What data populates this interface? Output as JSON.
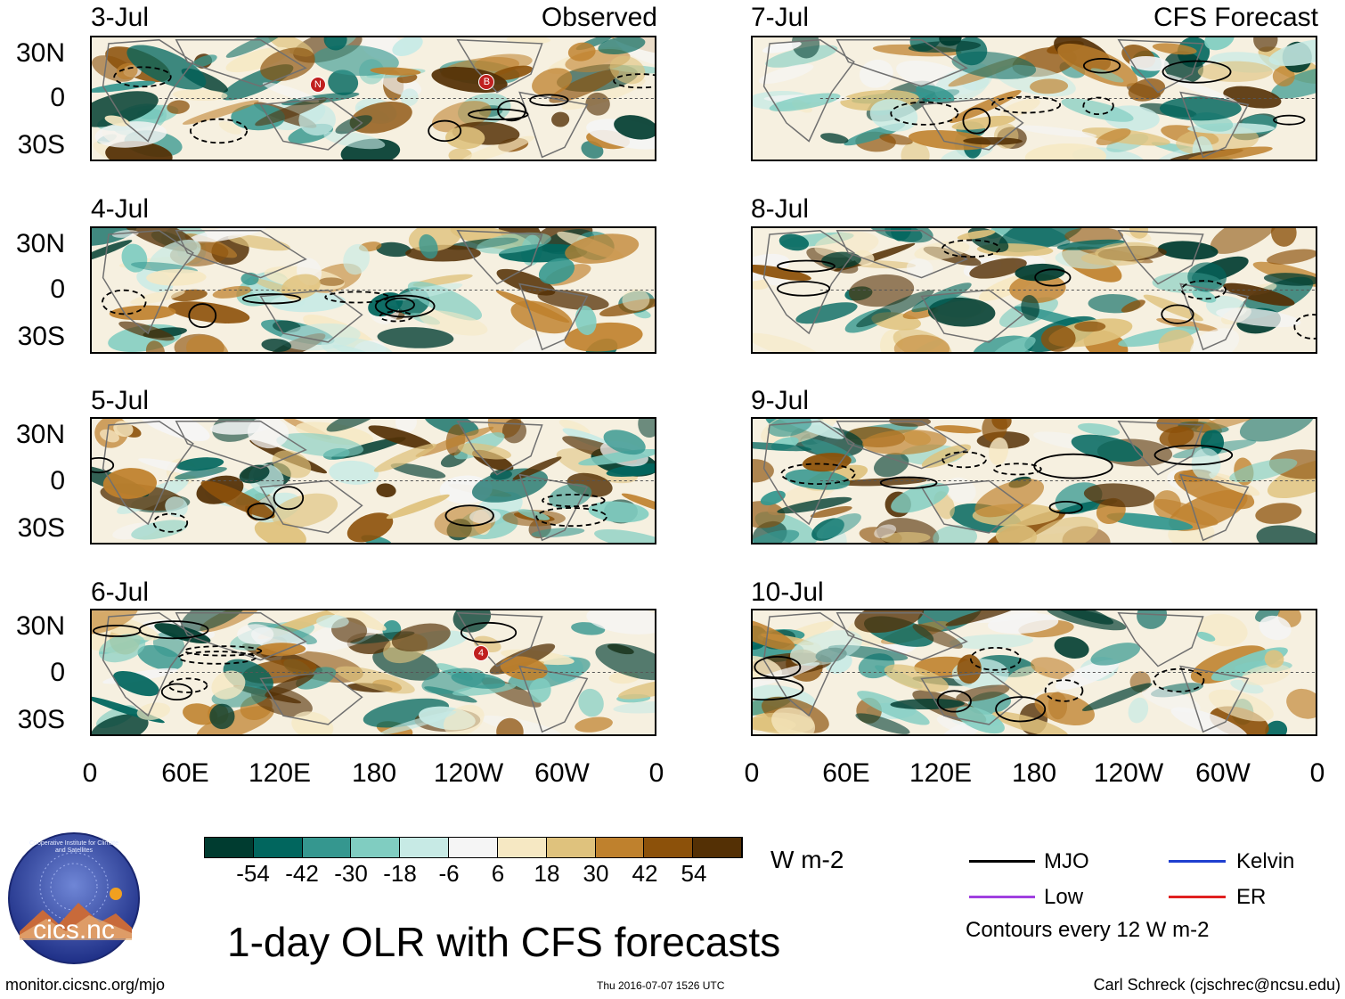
{
  "chart_data": {
    "type": "heatmap",
    "title": "1-day OLR with CFS forecasts",
    "observed_heading": "Observed",
    "forecast_heading": "CFS Forecast",
    "observed_dates": [
      "3-Jul",
      "4-Jul",
      "5-Jul",
      "6-Jul"
    ],
    "forecast_dates": [
      "7-Jul",
      "8-Jul",
      "9-Jul",
      "10-Jul"
    ],
    "lat_ticks": [
      "30N",
      "0",
      "30S"
    ],
    "lon_ticks": [
      "0",
      "60E",
      "120E",
      "180",
      "120W",
      "60W",
      "0"
    ],
    "lat_range": [
      -40,
      40
    ],
    "lon_range": [
      0,
      360
    ],
    "colorbar": {
      "unit": "W m-2",
      "ticks": [
        "-54",
        "-42",
        "-30",
        "-18",
        "-6",
        "6",
        "18",
        "30",
        "42",
        "54"
      ],
      "colors": [
        "#003c30",
        "#01665e",
        "#35978f",
        "#80cdc1",
        "#c7eae5",
        "#f5f5f5",
        "#f6e8c3",
        "#dfc27d",
        "#bf812d",
        "#8c510a",
        "#543005"
      ]
    },
    "legend": {
      "mjo": {
        "label": "MJO",
        "color": "#000000"
      },
      "kelvin": {
        "label": "Kelvin",
        "color": "#1f3fd0"
      },
      "low": {
        "label": "Low",
        "color": "#a040e0"
      },
      "er": {
        "label": "ER",
        "color": "#e02020"
      },
      "contour_note": "Contours every 12 W m-2"
    },
    "markers": [
      {
        "panel": "3-Jul",
        "label": "N"
      },
      {
        "panel": "3-Jul",
        "label": "B"
      },
      {
        "panel": "6-Jul",
        "label": "4"
      }
    ]
  },
  "footer": {
    "logo_text": "cics.nc",
    "logo_ring_text": "Cooperative Institute for Climate and Satellites",
    "url": "monitor.cicsnc.org/mjo",
    "timestamp": "Thu 2016-07-07 1526 UTC",
    "credit": "Carl Schreck (cjschrec@ncsu.edu)"
  }
}
